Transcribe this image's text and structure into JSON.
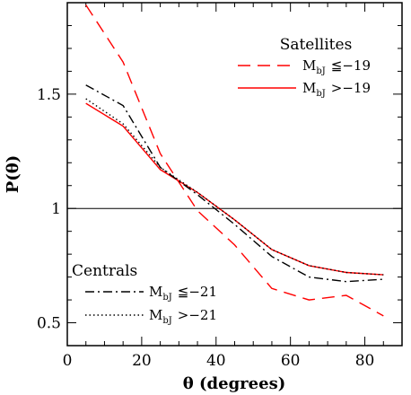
{
  "chart_data": {
    "type": "line",
    "xlabel": "θ (degrees)",
    "ylabel": "P(θ)",
    "xlim": [
      0,
      90
    ],
    "ylim": [
      0.4,
      1.9
    ],
    "x_ticks": [
      0,
      20,
      40,
      60,
      80
    ],
    "y_ticks": [
      0.5,
      1,
      1.5
    ],
    "x_tick_labels": [
      "0",
      "20",
      "40",
      "60",
      "80"
    ],
    "y_tick_labels": [
      "0.5",
      "1",
      "1.5"
    ],
    "reference_line": 1.0,
    "grid": false,
    "x": [
      5,
      15,
      25,
      35,
      45,
      55,
      65,
      75,
      85
    ],
    "legends": [
      {
        "title": "Satellites",
        "placement": "top-right",
        "entries": [
          {
            "series_index": 0,
            "base": "M",
            "sub": "bJ",
            "rel": "≦−19"
          },
          {
            "series_index": 1,
            "base": "M",
            "sub": "bJ",
            "rel": ">−19"
          }
        ]
      },
      {
        "title": "Centrals",
        "placement": "bottom-left",
        "entries": [
          {
            "series_index": 2,
            "base": "M",
            "sub": "bJ",
            "rel": "≦−21"
          },
          {
            "series_index": 3,
            "base": "M",
            "sub": "bJ",
            "rel": ">−21"
          }
        ]
      }
    ],
    "series": [
      {
        "values": [
          1.89,
          1.64,
          1.24,
          0.99,
          0.84,
          0.65,
          0.6,
          0.62,
          0.53
        ],
        "color": "#ff0000",
        "dash": "dashed"
      },
      {
        "values": [
          1.46,
          1.36,
          1.17,
          1.07,
          0.95,
          0.82,
          0.75,
          0.72,
          0.71
        ],
        "color": "#ff0000",
        "dash": "solid"
      },
      {
        "values": [
          1.54,
          1.45,
          1.18,
          1.06,
          0.93,
          0.79,
          0.7,
          0.68,
          0.69
        ],
        "color": "#000000",
        "dash": "dashdot"
      },
      {
        "values": [
          1.48,
          1.37,
          1.18,
          1.07,
          0.95,
          0.82,
          0.75,
          0.72,
          0.71
        ],
        "color": "#000000",
        "dash": "dotted"
      }
    ]
  }
}
